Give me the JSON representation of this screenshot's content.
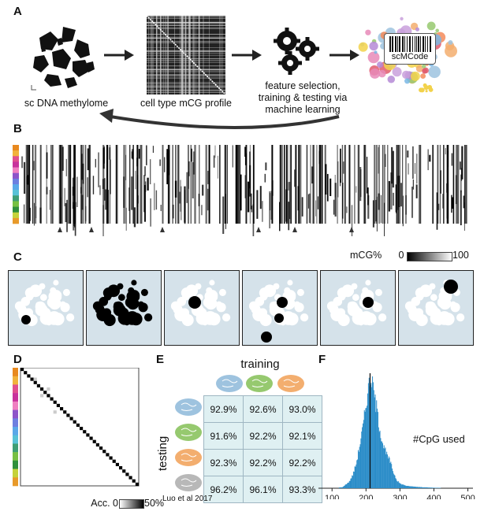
{
  "panel_labels": {
    "a": "A",
    "b": "B",
    "c": "C",
    "d": "D",
    "e": "E",
    "f": "F"
  },
  "panel_a": {
    "methylome_caption": "sc DNA methylome",
    "profile_caption": "cell type mCG profile",
    "ml_caption_1": "feature selection,",
    "ml_caption_2": "training & testing via",
    "ml_caption_3": "machine learning",
    "barcode_label": "scMCode"
  },
  "panel_b": {
    "scale_label": "mCG%",
    "scale_min": "0",
    "scale_max": "100",
    "color_strip": [
      "#e8891f",
      "#f1b23c",
      "#e04f8e",
      "#c8329c",
      "#ef7fc1",
      "#8d54c9",
      "#6d7fe0",
      "#5aa8e8",
      "#58c2d6",
      "#3e9e74",
      "#77c043",
      "#2f8f3b",
      "#c5d23a",
      "#e89a2a"
    ]
  },
  "panel_c": {
    "highlight_count": 6
  },
  "panel_d": {
    "colorbar_label": "Acc. 0",
    "colorbar_max": "50%"
  },
  "panel_e": {
    "training_label": "training",
    "testing_label": "testing",
    "source_label": "Luo et al 2017",
    "brain_colors": {
      "blue": "#9ec3df",
      "green": "#96c96f",
      "orange": "#f3ae6f",
      "gray": "#b8b8b8"
    },
    "rows": [
      [
        "92.9%",
        "92.6%",
        "93.0%"
      ],
      [
        "91.6%",
        "92.2%",
        "92.1%"
      ],
      [
        "92.3%",
        "92.2%",
        "92.2%"
      ],
      [
        "96.2%",
        "96.1%",
        "93.3%"
      ]
    ]
  },
  "chart_data": {
    "type": "histogram",
    "annotation": "#CpG used",
    "x_ticks": [
      "100",
      "200",
      "300",
      "400",
      "500"
    ],
    "xlim": [
      60,
      515
    ],
    "median_line_x": 212,
    "bins": [
      {
        "x": 100,
        "count": 0
      },
      {
        "x": 130,
        "count": 0.01
      },
      {
        "x": 150,
        "count": 0.06
      },
      {
        "x": 160,
        "count": 0.12
      },
      {
        "x": 170,
        "count": 0.22
      },
      {
        "x": 180,
        "count": 0.38
      },
      {
        "x": 190,
        "count": 0.55
      },
      {
        "x": 200,
        "count": 0.78
      },
      {
        "x": 205,
        "count": 0.88
      },
      {
        "x": 210,
        "count": 0.97
      },
      {
        "x": 215,
        "count": 1.0
      },
      {
        "x": 220,
        "count": 0.9
      },
      {
        "x": 230,
        "count": 0.72
      },
      {
        "x": 240,
        "count": 0.52
      },
      {
        "x": 250,
        "count": 0.38
      },
      {
        "x": 260,
        "count": 0.3
      },
      {
        "x": 270,
        "count": 0.24
      },
      {
        "x": 280,
        "count": 0.14
      },
      {
        "x": 290,
        "count": 0.07
      },
      {
        "x": 300,
        "count": 0.04
      },
      {
        "x": 320,
        "count": 0.02
      },
      {
        "x": 360,
        "count": 0.01
      },
      {
        "x": 400,
        "count": 0.004
      },
      {
        "x": 500,
        "count": 0.0
      }
    ],
    "bar_color": "#2a8cc8"
  }
}
